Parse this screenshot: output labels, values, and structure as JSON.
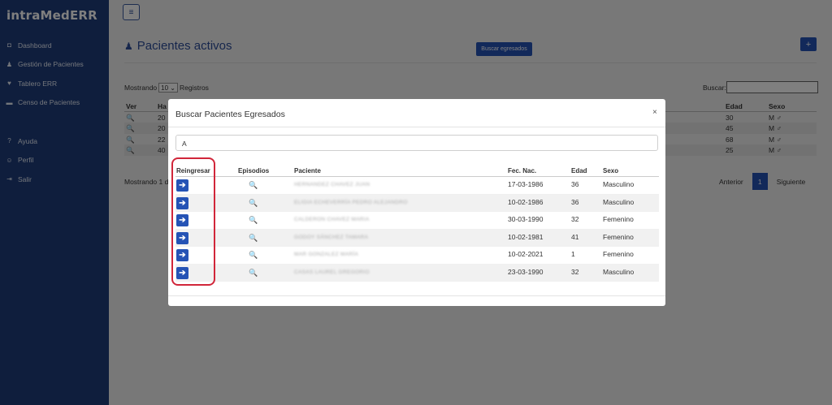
{
  "app": {
    "brand": "intraMedERR"
  },
  "sidebar": {
    "items": [
      {
        "label": "Dashboard",
        "icon": "dashboard-icon",
        "glyph": "◘"
      },
      {
        "label": "Gestión de Pacientes",
        "icon": "user-icon",
        "glyph": "♟"
      },
      {
        "label": "Tablero ERR",
        "icon": "heart-icon",
        "glyph": "♥"
      },
      {
        "label": "Censo de Pacientes",
        "icon": "bed-icon",
        "glyph": "▬"
      }
    ],
    "bottom_items": [
      {
        "label": "Ayuda",
        "icon": "help-icon",
        "glyph": "?"
      },
      {
        "label": "Perfil",
        "icon": "profile-icon",
        "glyph": "☺"
      },
      {
        "label": "Salir",
        "icon": "logout-icon",
        "glyph": "⇥"
      }
    ]
  },
  "topbar": {
    "menu_glyph": "≡"
  },
  "main": {
    "title": "Pacientes activos",
    "title_glyph": "♟",
    "buscar_egresados_label": "Buscar egresados",
    "add_glyph": "+",
    "show_prefix": "Mostrando",
    "show_value": "10",
    "show_suffix": "Registros",
    "search_label": "Buscar:",
    "table": {
      "headers": {
        "ver": "Ver",
        "ha": "Ha",
        "edad": "Edad",
        "sexo": "Sexo"
      },
      "rows": [
        {
          "ha": "20",
          "edad": "30",
          "sexo": "M ♂"
        },
        {
          "ha": "20",
          "edad": "45",
          "sexo": "M ♂"
        },
        {
          "ha": "22",
          "edad": "68",
          "sexo": "M ♂"
        },
        {
          "ha": "40",
          "edad": "25",
          "sexo": "M ♂"
        }
      ]
    },
    "info": "Mostrando 1 d",
    "pager": {
      "prev": "Anterior",
      "page": "1",
      "next": "Siguiente"
    }
  },
  "modal": {
    "title": "Buscar Pacientes Egresados",
    "close": "×",
    "search_value": "A",
    "headers": {
      "reingresar": "Reingresar",
      "episodios": "Episodios",
      "paciente": "Paciente",
      "fec_nac": "Fec. Nac.",
      "edad": "Edad",
      "sexo": "Sexo"
    },
    "rows": [
      {
        "paciente": "HERNANDEZ CHAVEZ JUAN",
        "fec_nac": "17-03-1986",
        "edad": "36",
        "sexo": "Masculino"
      },
      {
        "paciente": "ELIGIA ECHEVERRÍA PEDRO ALEJANDRO",
        "fec_nac": "10-02-1986",
        "edad": "36",
        "sexo": "Masculino"
      },
      {
        "paciente": "CALDERON CHAVEZ MARIA",
        "fec_nac": "30-03-1990",
        "edad": "32",
        "sexo": "Femenino"
      },
      {
        "paciente": "GODOY SÁNCHEZ TAMARA",
        "fec_nac": "10-02-1981",
        "edad": "41",
        "sexo": "Femenino"
      },
      {
        "paciente": "MAR GONZALEZ MARÍA",
        "fec_nac": "10-02-2021",
        "edad": "1",
        "sexo": "Femenino"
      },
      {
        "paciente": "CASAS LAUREL GREGORIO",
        "fec_nac": "23-03-1990",
        "edad": "32",
        "sexo": "Masculino"
      }
    ]
  },
  "colors": {
    "sidebar": "#1f3c7a",
    "accent": "#2553b5",
    "highlight": "#d1263a"
  }
}
